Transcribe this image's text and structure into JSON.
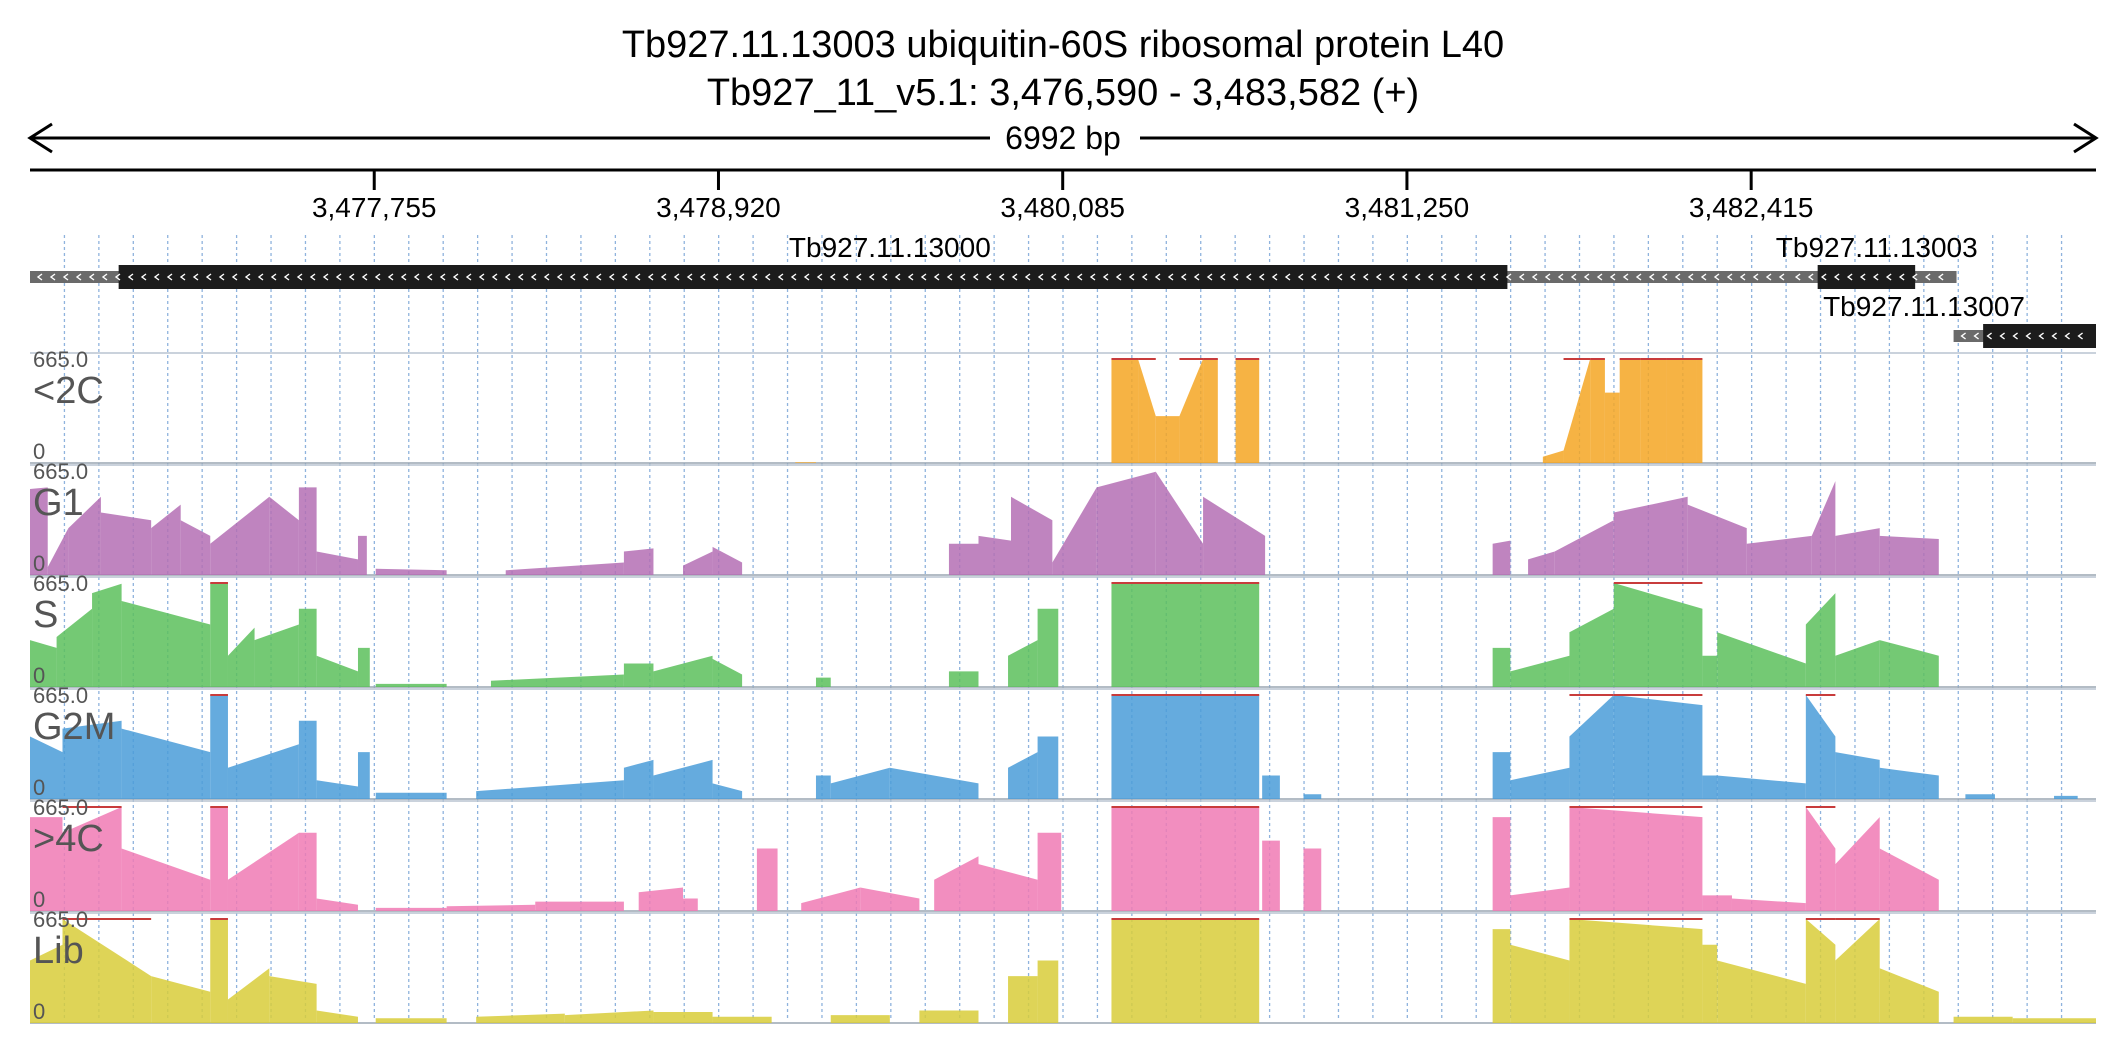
{
  "title": {
    "line1": "Tb927.11.13003  ubiquitin-60S ribosomal protein L40",
    "line2": "Tb927_11_v5.1: 3,476,590 - 3,483,582 (+)"
  },
  "span_label": "6992 bp",
  "region": {
    "start": 3476590,
    "end": 3483582
  },
  "ruler_ticks": [
    {
      "pos": 3477755,
      "label": "3,477,755"
    },
    {
      "pos": 3478920,
      "label": "3,478,920"
    },
    {
      "pos": 3480085,
      "label": "3,480,085"
    },
    {
      "pos": 3481250,
      "label": "3,481,250"
    },
    {
      "pos": 3482415,
      "label": "3,482,415"
    }
  ],
  "genes": [
    {
      "name": "Tb927.11.13000",
      "start": 3476590,
      "end": 3483000,
      "cds": [
        3476890,
        3481590
      ],
      "strand": "-",
      "row": 0
    },
    {
      "name": "Tb927.11.13003",
      "start": 3482540,
      "end": 3483110,
      "cds": [
        3482640,
        3482970
      ],
      "strand": "-",
      "row": 0
    },
    {
      "name": "Tb927.11.13007",
      "start": 3483100,
      "end": 3483582,
      "cds": [
        3483200,
        3483582
      ],
      "strand": "-",
      "row": 1
    }
  ],
  "tracks": [
    {
      "label": "<2C",
      "max_label": "665.0",
      "min_label": "0",
      "color": "#f5a623"
    },
    {
      "label": "G1",
      "max_label": "665.0",
      "min_label": "0",
      "color": "#b46fb4"
    },
    {
      "label": "S",
      "max_label": "665.0",
      "min_label": "0",
      "color": "#5cbf5c"
    },
    {
      "label": "G2M",
      "max_label": "665.0",
      "min_label": "0",
      "color": "#4a9cd8"
    },
    {
      "label": ">4C",
      "max_label": "665.0",
      "min_label": "0",
      "color": "#f07ab4"
    },
    {
      "label": "Lib",
      "max_label": "665.0",
      "min_label": "0",
      "color": "#d8cc3a"
    }
  ],
  "coverage_max": 665.0,
  "coverage_profiles": {
    "<2C": [
      [
        3479180,
        3479250,
        5,
        5
      ],
      [
        3480250,
        3480340,
        665,
        665
      ],
      [
        3480340,
        3480400,
        665,
        300
      ],
      [
        3480400,
        3480480,
        300,
        300
      ],
      [
        3480480,
        3480560,
        300,
        665
      ],
      [
        3480560,
        3480610,
        665,
        665
      ],
      [
        3480610,
        3480670,
        0,
        0
      ],
      [
        3480670,
        3480750,
        665,
        665
      ],
      [
        3481710,
        3481780,
        40,
        80
      ],
      [
        3481780,
        3481870,
        80,
        665
      ],
      [
        3481870,
        3481920,
        665,
        665
      ],
      [
        3481920,
        3481970,
        450,
        450
      ],
      [
        3481970,
        3482040,
        665,
        665
      ],
      [
        3482040,
        3482130,
        665,
        665
      ],
      [
        3482130,
        3482230,
        665,
        665
      ],
      [
        3482230,
        3482250,
        665,
        665
      ]
    ],
    "G1": [
      [
        3476590,
        3476650,
        550,
        560
      ],
      [
        3476650,
        3476720,
        50,
        300
      ],
      [
        3476720,
        3476830,
        300,
        500
      ],
      [
        3476830,
        3477000,
        400,
        350
      ],
      [
        3477000,
        3477100,
        300,
        450
      ],
      [
        3477100,
        3477200,
        350,
        250
      ],
      [
        3477200,
        3477400,
        200,
        500
      ],
      [
        3477400,
        3477500,
        500,
        350
      ],
      [
        3477500,
        3477560,
        560,
        560
      ],
      [
        3477560,
        3477700,
        150,
        100
      ],
      [
        3477700,
        3477730,
        250,
        250
      ],
      [
        3477760,
        3478000,
        40,
        30
      ],
      [
        3478200,
        3478600,
        30,
        80
      ],
      [
        3478600,
        3478700,
        150,
        170
      ],
      [
        3478800,
        3478900,
        60,
        150
      ],
      [
        3478900,
        3479000,
        180,
        80
      ],
      [
        3479700,
        3479800,
        200,
        200
      ],
      [
        3479800,
        3479910,
        250,
        220
      ],
      [
        3479910,
        3480050,
        500,
        350
      ],
      [
        3480050,
        3480200,
        80,
        560
      ],
      [
        3480200,
        3480400,
        560,
        660
      ],
      [
        3480400,
        3480560,
        660,
        200
      ],
      [
        3480560,
        3480770,
        500,
        250
      ],
      [
        3481540,
        3481600,
        200,
        220
      ],
      [
        3481660,
        3481750,
        100,
        150
      ],
      [
        3481750,
        3481950,
        150,
        350
      ],
      [
        3481950,
        3482200,
        400,
        500
      ],
      [
        3482200,
        3482400,
        450,
        300
      ],
      [
        3482400,
        3482620,
        200,
        250
      ],
      [
        3482620,
        3482700,
        250,
        600
      ],
      [
        3482700,
        3482850,
        250,
        300
      ],
      [
        3482850,
        3483050,
        250,
        230
      ]
    ],
    "S": [
      [
        3476590,
        3476680,
        300,
        250
      ],
      [
        3476680,
        3476800,
        320,
        500
      ],
      [
        3476800,
        3476900,
        600,
        660
      ],
      [
        3476900,
        3477200,
        550,
        400
      ],
      [
        3477200,
        3477260,
        665,
        665
      ],
      [
        3477260,
        3477350,
        200,
        380
      ],
      [
        3477350,
        3477500,
        300,
        400
      ],
      [
        3477500,
        3477560,
        500,
        500
      ],
      [
        3477560,
        3477700,
        200,
        100
      ],
      [
        3477700,
        3477740,
        250,
        250
      ],
      [
        3477760,
        3478000,
        20,
        20
      ],
      [
        3478150,
        3478600,
        40,
        80
      ],
      [
        3478600,
        3478700,
        150,
        150
      ],
      [
        3478700,
        3478900,
        100,
        200
      ],
      [
        3478900,
        3479000,
        180,
        80
      ],
      [
        3479250,
        3479300,
        60,
        60
      ],
      [
        3479700,
        3479800,
        100,
        100
      ],
      [
        3479900,
        3480000,
        200,
        300
      ],
      [
        3480000,
        3480070,
        500,
        500
      ],
      [
        3480250,
        3480750,
        665,
        665
      ],
      [
        3481540,
        3481600,
        250,
        250
      ],
      [
        3481600,
        3481800,
        100,
        200
      ],
      [
        3481800,
        3481950,
        350,
        500
      ],
      [
        3481950,
        3482250,
        665,
        500
      ],
      [
        3482250,
        3482300,
        200,
        200
      ],
      [
        3482300,
        3482600,
        350,
        150
      ],
      [
        3482600,
        3482700,
        400,
        600
      ],
      [
        3482700,
        3482850,
        200,
        300
      ],
      [
        3482850,
        3483050,
        300,
        200
      ]
    ],
    "G2M": [
      [
        3476590,
        3476700,
        400,
        300
      ],
      [
        3476700,
        3476900,
        450,
        500
      ],
      [
        3476900,
        3477200,
        450,
        300
      ],
      [
        3477200,
        3477260,
        665,
        665
      ],
      [
        3477260,
        3477500,
        200,
        350
      ],
      [
        3477500,
        3477560,
        500,
        500
      ],
      [
        3477560,
        3477700,
        120,
        80
      ],
      [
        3477700,
        3477740,
        300,
        300
      ],
      [
        3477760,
        3478000,
        40,
        40
      ],
      [
        3478100,
        3478600,
        50,
        120
      ],
      [
        3478600,
        3478700,
        200,
        250
      ],
      [
        3478700,
        3478900,
        150,
        250
      ],
      [
        3478900,
        3479000,
        100,
        50
      ],
      [
        3479250,
        3479300,
        150,
        150
      ],
      [
        3479300,
        3479500,
        100,
        200
      ],
      [
        3479500,
        3479800,
        200,
        100
      ],
      [
        3479900,
        3480000,
        200,
        300
      ],
      [
        3480000,
        3480070,
        400,
        400
      ],
      [
        3480250,
        3480750,
        665,
        665
      ],
      [
        3480760,
        3480820,
        150,
        150
      ],
      [
        3480900,
        3480960,
        30,
        30
      ],
      [
        3481540,
        3481600,
        300,
        300
      ],
      [
        3481600,
        3481800,
        120,
        200
      ],
      [
        3481800,
        3481950,
        400,
        665
      ],
      [
        3481950,
        3482250,
        665,
        600
      ],
      [
        3482250,
        3482300,
        150,
        150
      ],
      [
        3482300,
        3482600,
        150,
        100
      ],
      [
        3482600,
        3482700,
        665,
        400
      ],
      [
        3482700,
        3482850,
        300,
        250
      ],
      [
        3482850,
        3483050,
        200,
        150
      ],
      [
        3483140,
        3483240,
        30,
        30
      ],
      [
        3483440,
        3483520,
        20,
        20
      ]
    ],
    ">4C": [
      [
        3476590,
        3476700,
        600,
        600
      ],
      [
        3476700,
        3476900,
        500,
        665
      ],
      [
        3476900,
        3477200,
        400,
        200
      ],
      [
        3477200,
        3477260,
        665,
        665
      ],
      [
        3477260,
        3477500,
        200,
        500
      ],
      [
        3477500,
        3477560,
        500,
        500
      ],
      [
        3477560,
        3477700,
        80,
        40
      ],
      [
        3477760,
        3478000,
        20,
        20
      ],
      [
        3478000,
        3478300,
        30,
        40
      ],
      [
        3478300,
        3478600,
        60,
        60
      ],
      [
        3478650,
        3478800,
        120,
        150
      ],
      [
        3478800,
        3478850,
        80,
        80
      ],
      [
        3479050,
        3479120,
        400,
        400
      ],
      [
        3479200,
        3479400,
        50,
        150
      ],
      [
        3479400,
        3479600,
        150,
        80
      ],
      [
        3479650,
        3479800,
        200,
        350
      ],
      [
        3479800,
        3480000,
        300,
        200
      ],
      [
        3480000,
        3480080,
        500,
        500
      ],
      [
        3480250,
        3480750,
        665,
        665
      ],
      [
        3480760,
        3480820,
        450,
        450
      ],
      [
        3480900,
        3480960,
        400,
        400
      ],
      [
        3481540,
        3481600,
        600,
        600
      ],
      [
        3481600,
        3481800,
        100,
        150
      ],
      [
        3481800,
        3482250,
        665,
        600
      ],
      [
        3482250,
        3482350,
        100,
        100
      ],
      [
        3482350,
        3482600,
        80,
        50
      ],
      [
        3482600,
        3482700,
        665,
        400
      ],
      [
        3482700,
        3482850,
        300,
        600
      ],
      [
        3482850,
        3483050,
        400,
        200
      ]
    ],
    "Lib": [
      [
        3476590,
        3476700,
        400,
        500
      ],
      [
        3476700,
        3477000,
        665,
        300
      ],
      [
        3477000,
        3477200,
        300,
        200
      ],
      [
        3477200,
        3477260,
        665,
        665
      ],
      [
        3477260,
        3477400,
        150,
        350
      ],
      [
        3477400,
        3477560,
        300,
        250
      ],
      [
        3477560,
        3477700,
        80,
        40
      ],
      [
        3477760,
        3478000,
        30,
        30
      ],
      [
        3478100,
        3478400,
        40,
        60
      ],
      [
        3478400,
        3478700,
        50,
        80
      ],
      [
        3478700,
        3478900,
        70,
        70
      ],
      [
        3478900,
        3479100,
        40,
        40
      ],
      [
        3479300,
        3479500,
        50,
        50
      ],
      [
        3479600,
        3479800,
        80,
        80
      ],
      [
        3479900,
        3480000,
        300,
        300
      ],
      [
        3480000,
        3480070,
        400,
        400
      ],
      [
        3480250,
        3480750,
        665,
        665
      ],
      [
        3481540,
        3481600,
        600,
        600
      ],
      [
        3481600,
        3481800,
        500,
        400
      ],
      [
        3481800,
        3482250,
        665,
        600
      ],
      [
        3482250,
        3482300,
        500,
        500
      ],
      [
        3482300,
        3482600,
        400,
        250
      ],
      [
        3482600,
        3482700,
        665,
        500
      ],
      [
        3482700,
        3482850,
        400,
        665
      ],
      [
        3482850,
        3483050,
        350,
        200
      ],
      [
        3483100,
        3483300,
        40,
        40
      ],
      [
        3483300,
        3483582,
        30,
        30
      ]
    ]
  }
}
